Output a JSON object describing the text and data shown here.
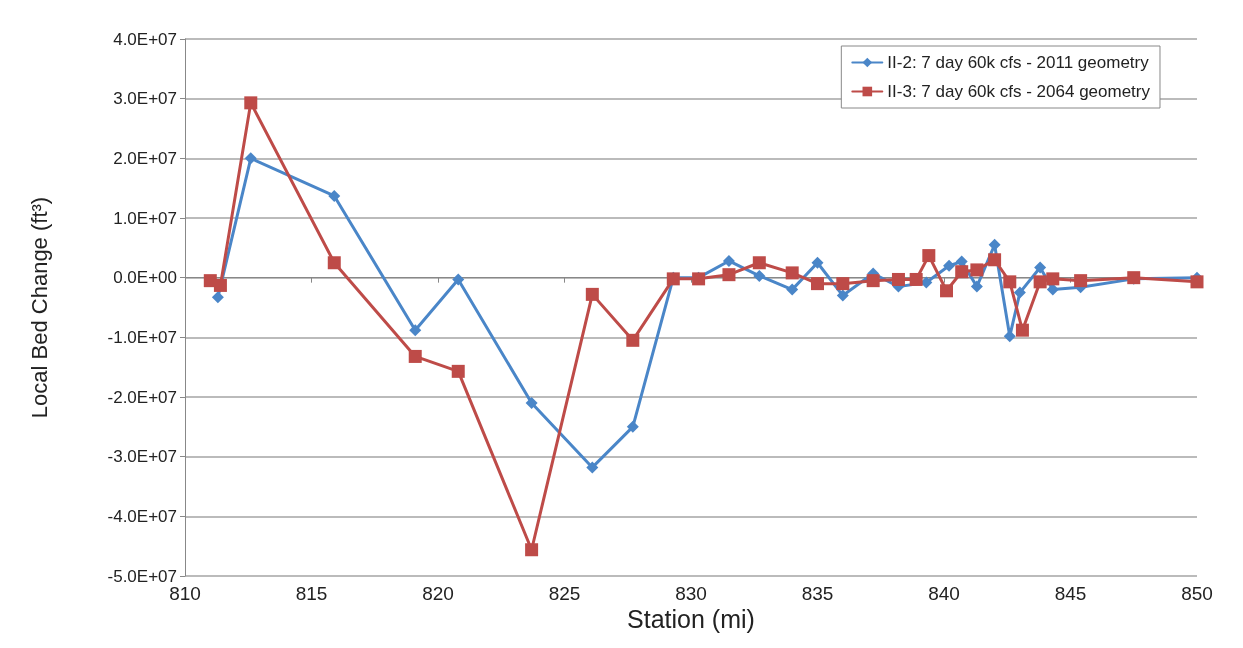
{
  "chart_data": {
    "type": "line",
    "xlabel": "Station (mi)",
    "ylabel": "Local Bed Change (ft³)",
    "xlim": [
      810,
      850
    ],
    "xticks": [
      810,
      815,
      820,
      825,
      830,
      835,
      840,
      845,
      850
    ],
    "ylim": [
      -50000000,
      40000000
    ],
    "yticks": [
      {
        "value": -50000000,
        "label": "-5.0E+07"
      },
      {
        "value": -40000000,
        "label": "-4.0E+07"
      },
      {
        "value": -30000000,
        "label": "-3.0E+07"
      },
      {
        "value": -20000000,
        "label": "-2.0E+07"
      },
      {
        "value": -10000000,
        "label": "-1.0E+07"
      },
      {
        "value": 0,
        "label": "0.0E+00"
      },
      {
        "value": 10000000,
        "label": "1.0E+07"
      },
      {
        "value": 20000000,
        "label": "2.0E+07"
      },
      {
        "value": 30000000,
        "label": "3.0E+07"
      },
      {
        "value": 40000000,
        "label": "4.0E+07"
      }
    ],
    "grid": "y",
    "legend": "top right",
    "line_style": "solid",
    "series": [
      {
        "name": "II-2: 7 day 60k cfs - 2011 geometry",
        "color": "#4a86c8",
        "marker": "diamond",
        "x": [
          811.3,
          812.6,
          815.9,
          819.1,
          820.8,
          823.7,
          826.1,
          827.7,
          829.3,
          830.3,
          831.5,
          832.7,
          834.0,
          835.0,
          836.0,
          837.2,
          838.2,
          839.3,
          840.2,
          840.7,
          841.3,
          842.0,
          842.6,
          843.0,
          843.8,
          844.3,
          845.4,
          847.5,
          850
        ],
        "values": [
          -3300000,
          20000000,
          13700000,
          -8800000,
          -300000,
          -21000000,
          -31800000,
          -25000000,
          0,
          0,
          2800000,
          300000,
          -2000000,
          2500000,
          -3000000,
          700000,
          -1500000,
          -800000,
          2000000,
          2700000,
          -1500000,
          5500000,
          -9800000,
          -2500000,
          1700000,
          -2000000,
          -1600000,
          -200000,
          0
        ]
      },
      {
        "name": "II-3: 7 day 60k cfs - 2064 geometry",
        "color": "#be4b48",
        "marker": "square",
        "x": [
          811.0,
          811.4,
          812.6,
          815.9,
          819.1,
          820.8,
          823.7,
          826.1,
          827.7,
          829.3,
          830.3,
          831.5,
          832.7,
          834.0,
          835.0,
          836.0,
          837.2,
          838.2,
          838.9,
          839.4,
          840.1,
          840.7,
          841.3,
          842.0,
          842.6,
          843.1,
          843.8,
          844.3,
          845.4,
          847.5,
          850
        ],
        "values": [
          -500000,
          -1300000,
          29300000,
          2500000,
          -13200000,
          -15700000,
          -45600000,
          -2800000,
          -10500000,
          -200000,
          -200000,
          500000,
          2500000,
          800000,
          -1000000,
          -1000000,
          -500000,
          -300000,
          -300000,
          3700000,
          -2200000,
          1000000,
          1300000,
          3000000,
          -700000,
          -8800000,
          -700000,
          -200000,
          -500000,
          0,
          -700000
        ]
      }
    ]
  }
}
